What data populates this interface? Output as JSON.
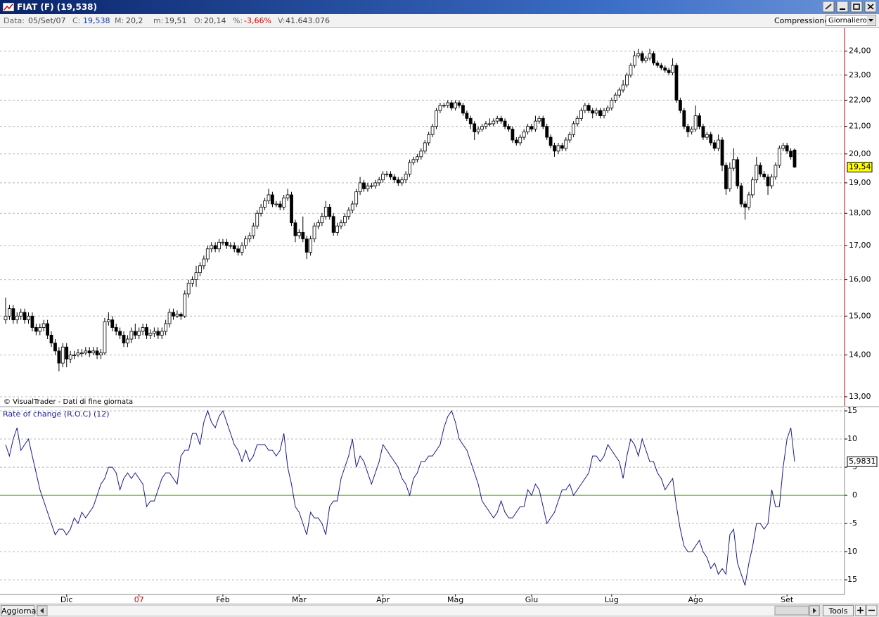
{
  "window": {
    "title": "FIAT (F) (19,538)"
  },
  "info_bar": {
    "items": [
      {
        "label": "Data:",
        "value": "05/Set/07"
      },
      {
        "label": "C:",
        "value": "19,538"
      },
      {
        "label": "M:",
        "value": "20,2"
      },
      {
        "label": "m:",
        "value": "19,51"
      },
      {
        "label": "O:",
        "value": "20,14"
      },
      {
        "label": "%:",
        "value": "-3,66%"
      },
      {
        "label": "V:",
        "value": "41.643.076"
      }
    ],
    "compression_label": "Compressione",
    "compression_value": "Giornaliero"
  },
  "chart_data": [
    {
      "type": "candlestick",
      "annotation": "© VisualTrader - Dati di fine giornata",
      "open": [
        14.9,
        15.0,
        15.2,
        14.9,
        15.0,
        15.1,
        14.9,
        15.0,
        14.7,
        14.6,
        14.7,
        14.8,
        14.5,
        14.3,
        14.1,
        13.8,
        14.2,
        13.9,
        14.0,
        14.0,
        14.05,
        14.05,
        14.1,
        14.05,
        14.1,
        14.0,
        14.05,
        14.85,
        14.9,
        14.7,
        14.6,
        14.5,
        14.3,
        14.4,
        14.6,
        14.5,
        14.6,
        14.7,
        14.5,
        14.55,
        14.6,
        14.5,
        14.6,
        14.8,
        15.1,
        15.0,
        15.05,
        15.0,
        15.6,
        15.9,
        16.0,
        16.2,
        16.4,
        16.6,
        16.9,
        17.0,
        16.9,
        17.1,
        17.1,
        17.0,
        17.0,
        16.9,
        16.8,
        17.0,
        17.2,
        17.3,
        17.6,
        18.0,
        18.2,
        18.4,
        18.6,
        18.3,
        18.3,
        18.2,
        18.5,
        18.6,
        17.7,
        17.3,
        17.4,
        17.2,
        16.8,
        17.2,
        17.6,
        17.7,
        17.9,
        18.2,
        17.9,
        17.4,
        17.6,
        17.7,
        17.9,
        18.1,
        18.3,
        18.7,
        19.0,
        18.8,
        18.9,
        18.9,
        19.0,
        19.1,
        19.3,
        19.3,
        19.2,
        19.1,
        19.0,
        19.1,
        19.3,
        19.7,
        19.8,
        19.9,
        20.1,
        20.4,
        20.7,
        21.0,
        21.6,
        21.8,
        21.8,
        21.9,
        21.7,
        21.9,
        21.8,
        21.5,
        21.3,
        21.1,
        20.8,
        20.9,
        21.0,
        21.1,
        21.1,
        21.2,
        21.3,
        21.2,
        21.0,
        20.9,
        20.5,
        20.4,
        20.6,
        20.8,
        21.0,
        20.9,
        21.2,
        21.3,
        21.0,
        20.6,
        20.3,
        20.1,
        20.3,
        20.2,
        20.5,
        20.7,
        21.1,
        21.3,
        21.6,
        21.8,
        21.6,
        21.5,
        21.6,
        21.4,
        21.6,
        21.7,
        22.0,
        22.2,
        22.4,
        22.6,
        23.0,
        23.4,
        23.8,
        23.9,
        23.6,
        23.7,
        23.9,
        23.5,
        23.4,
        23.3,
        23.2,
        23.1,
        23.4,
        22.0,
        21.6,
        21.0,
        20.8,
        20.9,
        21.4,
        21.0,
        20.6,
        20.7,
        20.4,
        20.2,
        20.5,
        19.6,
        18.8,
        19.5,
        19.8,
        18.9,
        18.3,
        18.2,
        18.6,
        19.1,
        19.6,
        19.3,
        19.2,
        18.9,
        19.2,
        19.6,
        20.2,
        20.3,
        20.1,
        20.14
      ],
      "high": [
        15.5,
        15.3,
        15.3,
        15.1,
        15.2,
        15.2,
        15.1,
        15.1,
        14.8,
        14.8,
        14.9,
        14.9,
        14.6,
        14.4,
        14.2,
        14.3,
        14.3,
        14.1,
        14.1,
        14.15,
        14.15,
        14.2,
        14.2,
        14.2,
        14.2,
        14.15,
        14.95,
        15.1,
        15.0,
        14.8,
        14.7,
        14.6,
        14.5,
        14.7,
        14.8,
        14.7,
        14.8,
        14.8,
        14.65,
        14.7,
        14.7,
        14.7,
        14.9,
        15.2,
        15.2,
        15.15,
        15.1,
        15.7,
        16.0,
        16.1,
        16.4,
        16.5,
        16.7,
        17.0,
        17.1,
        17.1,
        17.2,
        17.2,
        17.2,
        17.1,
        17.1,
        17.0,
        17.1,
        17.3,
        17.4,
        17.7,
        18.1,
        18.3,
        18.5,
        18.8,
        18.7,
        18.4,
        18.4,
        18.6,
        18.8,
        18.7,
        17.8,
        17.5,
        17.9,
        17.3,
        17.3,
        17.7,
        17.8,
        18.0,
        18.4,
        18.3,
        18.0,
        17.7,
        17.8,
        18.0,
        18.2,
        18.4,
        18.8,
        19.2,
        19.1,
        19.0,
        19.0,
        19.1,
        19.2,
        19.4,
        19.4,
        19.4,
        19.3,
        19.2,
        19.2,
        19.4,
        19.8,
        19.9,
        20.0,
        20.2,
        20.5,
        20.8,
        21.1,
        21.7,
        21.9,
        21.9,
        22.0,
        22.0,
        22.0,
        22.0,
        21.9,
        21.6,
        21.4,
        21.2,
        21.0,
        21.1,
        21.2,
        21.3,
        21.3,
        21.4,
        21.4,
        21.3,
        21.1,
        21.0,
        20.6,
        20.7,
        20.9,
        21.1,
        21.1,
        21.4,
        21.4,
        21.4,
        21.1,
        20.7,
        20.4,
        20.4,
        20.4,
        20.6,
        20.8,
        21.2,
        21.4,
        21.7,
        21.9,
        21.9,
        21.7,
        21.7,
        21.7,
        21.7,
        21.8,
        22.1,
        22.3,
        22.5,
        22.8,
        23.1,
        23.5,
        24.0,
        24.1,
        24.0,
        23.8,
        24.1,
        24.0,
        23.6,
        23.5,
        23.4,
        23.3,
        23.7,
        23.5,
        22.1,
        21.7,
        21.1,
        21.0,
        21.8,
        21.5,
        21.1,
        20.8,
        20.8,
        20.5,
        20.7,
        20.6,
        19.7,
        19.7,
        20.2,
        19.9,
        19.0,
        18.4,
        18.7,
        19.2,
        19.9,
        19.7,
        19.4,
        19.3,
        19.3,
        19.7,
        20.3,
        20.4,
        20.4,
        20.2,
        20.2
      ],
      "low": [
        14.8,
        14.9,
        14.8,
        14.8,
        14.9,
        14.8,
        14.8,
        14.6,
        14.5,
        14.5,
        14.6,
        14.4,
        14.2,
        14.0,
        13.6,
        13.7,
        13.7,
        13.8,
        13.9,
        13.95,
        13.95,
        14.0,
        13.95,
        14.0,
        13.9,
        13.9,
        14.0,
        14.75,
        14.6,
        14.5,
        14.4,
        14.2,
        14.2,
        14.3,
        14.4,
        14.4,
        14.5,
        14.4,
        14.4,
        14.45,
        14.4,
        14.4,
        14.5,
        14.7,
        14.9,
        14.95,
        14.9,
        14.95,
        15.5,
        15.8,
        15.8,
        16.1,
        16.3,
        16.5,
        16.8,
        16.8,
        16.8,
        17.0,
        16.9,
        16.9,
        16.8,
        16.7,
        16.7,
        16.9,
        17.1,
        17.2,
        17.5,
        17.9,
        18.1,
        18.3,
        18.2,
        18.2,
        18.1,
        18.1,
        18.4,
        17.6,
        17.1,
        17.2,
        17.1,
        16.6,
        16.7,
        17.1,
        17.5,
        17.6,
        17.8,
        17.8,
        17.3,
        17.3,
        17.5,
        17.6,
        17.8,
        18.0,
        18.2,
        18.6,
        18.7,
        18.7,
        18.8,
        18.8,
        18.9,
        19.0,
        19.2,
        19.1,
        19.0,
        18.9,
        18.9,
        19.0,
        19.2,
        19.6,
        19.7,
        19.8,
        20.0,
        20.3,
        20.6,
        20.9,
        21.5,
        21.7,
        21.7,
        21.6,
        21.6,
        21.7,
        21.4,
        21.2,
        20.9,
        20.5,
        20.7,
        20.8,
        20.9,
        21.0,
        21.0,
        21.1,
        21.1,
        20.9,
        20.8,
        20.4,
        20.3,
        20.3,
        20.5,
        20.7,
        20.8,
        20.8,
        21.1,
        20.9,
        20.5,
        20.2,
        19.9,
        20.0,
        20.1,
        20.1,
        20.4,
        20.6,
        21.0,
        21.2,
        21.5,
        21.5,
        21.3,
        21.4,
        21.3,
        21.3,
        21.5,
        21.6,
        21.9,
        22.1,
        22.3,
        22.5,
        22.9,
        23.3,
        23.7,
        23.5,
        23.5,
        23.6,
        23.4,
        23.3,
        23.2,
        23.1,
        23.0,
        23.0,
        21.9,
        21.5,
        20.9,
        20.6,
        20.7,
        20.8,
        20.9,
        20.5,
        20.5,
        20.3,
        20.1,
        20.1,
        19.4,
        18.6,
        18.7,
        19.4,
        18.8,
        18.2,
        17.8,
        18.1,
        18.5,
        19.0,
        19.2,
        19.1,
        18.6,
        18.8,
        19.1,
        19.5,
        20.1,
        20.0,
        19.8,
        19.51
      ],
      "close": [
        15.0,
        15.2,
        14.9,
        15.0,
        15.1,
        14.9,
        15.0,
        14.7,
        14.6,
        14.7,
        14.8,
        14.5,
        14.3,
        14.1,
        13.8,
        14.2,
        13.9,
        14.0,
        14.0,
        14.05,
        14.05,
        14.1,
        14.05,
        14.1,
        14.0,
        14.05,
        14.85,
        14.9,
        14.7,
        14.6,
        14.5,
        14.3,
        14.4,
        14.6,
        14.5,
        14.6,
        14.7,
        14.5,
        14.55,
        14.6,
        14.5,
        14.6,
        14.8,
        15.1,
        15.0,
        15.05,
        15.0,
        15.6,
        15.9,
        16.0,
        16.2,
        16.4,
        16.6,
        16.9,
        17.0,
        16.9,
        17.1,
        17.1,
        17.0,
        17.0,
        16.9,
        16.8,
        17.0,
        17.2,
        17.3,
        17.6,
        18.0,
        18.2,
        18.4,
        18.6,
        18.3,
        18.3,
        18.2,
        18.5,
        18.6,
        17.7,
        17.3,
        17.4,
        17.2,
        16.8,
        17.2,
        17.6,
        17.7,
        17.9,
        18.2,
        17.9,
        17.4,
        17.6,
        17.7,
        17.9,
        18.1,
        18.3,
        18.7,
        19.0,
        18.8,
        18.9,
        18.9,
        19.0,
        19.1,
        19.3,
        19.3,
        19.2,
        19.1,
        19.0,
        19.1,
        19.3,
        19.7,
        19.8,
        19.9,
        20.1,
        20.4,
        20.7,
        21.0,
        21.6,
        21.8,
        21.8,
        21.9,
        21.7,
        21.9,
        21.8,
        21.5,
        21.3,
        21.1,
        20.8,
        20.9,
        21.0,
        21.1,
        21.1,
        21.2,
        21.3,
        21.2,
        21.0,
        20.9,
        20.5,
        20.4,
        20.6,
        20.8,
        21.0,
        20.9,
        21.2,
        21.3,
        21.0,
        20.6,
        20.3,
        20.1,
        20.3,
        20.2,
        20.5,
        20.7,
        21.1,
        21.3,
        21.6,
        21.8,
        21.6,
        21.5,
        21.6,
        21.4,
        21.6,
        21.7,
        22.0,
        22.2,
        22.4,
        22.6,
        23.0,
        23.4,
        23.8,
        23.9,
        23.6,
        23.7,
        23.9,
        23.5,
        23.4,
        23.3,
        23.2,
        23.1,
        23.4,
        22.0,
        21.6,
        21.0,
        20.8,
        20.9,
        21.4,
        21.0,
        20.6,
        20.7,
        20.4,
        20.2,
        20.5,
        19.6,
        18.8,
        19.5,
        19.8,
        18.9,
        18.3,
        18.2,
        18.6,
        19.1,
        19.6,
        19.3,
        19.2,
        18.9,
        19.2,
        19.6,
        20.2,
        20.3,
        20.1,
        19.9,
        19.538
      ],
      "last_value_label": "19,54",
      "up_color": "#ffffff",
      "down_color": "#000000",
      "axis_color": "#cc0000",
      "log_scale": true,
      "grid": true,
      "ylim": [
        12.79,
        25.0
      ],
      "yticks": [
        {
          "value": 13,
          "label": "13,00"
        },
        {
          "value": 14,
          "label": "14,00"
        },
        {
          "value": 15,
          "label": "15,00"
        },
        {
          "value": 16,
          "label": "16,00"
        },
        {
          "value": 17,
          "label": "17,00"
        },
        {
          "value": 18,
          "label": "18,00"
        },
        {
          "value": 19,
          "label": "19,00"
        },
        {
          "value": 20,
          "label": "20,00"
        },
        {
          "value": 21,
          "label": "21,00"
        },
        {
          "value": 22,
          "label": "22,00"
        },
        {
          "value": 23,
          "label": "23,00"
        },
        {
          "value": 24,
          "label": "24,00"
        }
      ]
    },
    {
      "type": "line",
      "title": "Rate of change (R.O.C) (12)",
      "categories": [
        null,
        null,
        null,
        null,
        null,
        null,
        null,
        null,
        null,
        null,
        null,
        null,
        null,
        null,
        null,
        null,
        "Dic",
        null,
        null,
        null,
        null,
        null,
        null,
        null,
        null,
        null,
        null,
        null,
        null,
        null,
        null,
        null,
        null,
        null,
        null,
        "07",
        null,
        null,
        null,
        null,
        null,
        null,
        null,
        null,
        null,
        null,
        null,
        null,
        null,
        null,
        null,
        null,
        null,
        null,
        null,
        null,
        null,
        "Feb",
        null,
        null,
        null,
        null,
        null,
        null,
        null,
        null,
        null,
        null,
        null,
        null,
        null,
        null,
        null,
        null,
        null,
        null,
        null,
        "Mar",
        null,
        null,
        null,
        null,
        null,
        null,
        null,
        null,
        null,
        null,
        null,
        null,
        null,
        null,
        null,
        null,
        null,
        null,
        null,
        null,
        null,
        "Apr",
        null,
        null,
        null,
        null,
        null,
        null,
        null,
        null,
        null,
        null,
        null,
        null,
        null,
        null,
        null,
        null,
        null,
        null,
        "Mag",
        null,
        null,
        null,
        null,
        null,
        null,
        null,
        null,
        null,
        null,
        null,
        null,
        null,
        null,
        null,
        null,
        null,
        null,
        null,
        "Giu",
        null,
        null,
        null,
        null,
        null,
        null,
        null,
        null,
        null,
        null,
        null,
        null,
        null,
        null,
        null,
        null,
        null,
        null,
        null,
        null,
        "Lug",
        null,
        null,
        null,
        null,
        null,
        null,
        null,
        null,
        null,
        null,
        null,
        null,
        null,
        null,
        null,
        null,
        null,
        null,
        null,
        null,
        null,
        "Ago",
        null,
        null,
        null,
        null,
        null,
        null,
        null,
        null,
        null,
        null,
        null,
        null,
        null,
        null,
        null,
        null,
        null,
        null,
        null,
        null,
        null,
        null,
        null,
        "Set",
        null,
        null
      ],
      "values": [
        9,
        7,
        10,
        12,
        8,
        9,
        10,
        7,
        4,
        1,
        -1,
        -3,
        -5,
        -7,
        -6,
        -6,
        -7,
        -6,
        -4,
        -5,
        -3,
        -4,
        -3,
        -2,
        0,
        2,
        3,
        5,
        5,
        4,
        1,
        3,
        4,
        3,
        4,
        3,
        2,
        -2,
        -1,
        -1,
        1,
        3,
        4,
        4,
        3,
        2,
        7,
        8,
        8,
        11,
        11,
        9,
        13,
        15,
        13,
        12,
        14,
        15,
        13,
        11,
        9,
        8,
        6,
        8,
        6,
        7,
        9,
        9,
        9,
        8,
        8,
        7,
        8,
        11,
        5,
        2,
        -2,
        -3,
        -5,
        -7,
        -3,
        -4,
        -4,
        -5,
        -7,
        -2,
        -1,
        -1,
        3,
        5,
        7,
        10,
        5,
        7,
        6,
        4,
        2,
        4,
        6,
        9,
        8,
        7,
        6,
        5,
        3,
        2,
        0,
        3,
        4,
        6,
        6,
        7,
        7,
        8,
        9,
        12,
        14,
        15,
        13,
        10,
        9,
        8,
        6,
        4,
        2,
        -1,
        -2,
        -3,
        -4,
        -3,
        -1,
        -3,
        -4,
        -4,
        -3,
        -2,
        -2,
        1,
        0,
        2,
        1,
        -2,
        -5,
        -4,
        -3,
        -1,
        1,
        1,
        2,
        0,
        1,
        2,
        3,
        4,
        7,
        7,
        6,
        7,
        9,
        8,
        7,
        6,
        3,
        7,
        10,
        9,
        7,
        10,
        8,
        6,
        6,
        4,
        3,
        1,
        2,
        3,
        -2,
        -6,
        -9,
        -10,
        -10,
        -9,
        -8,
        -10,
        -11,
        -13,
        -12,
        -14,
        -13,
        -14,
        -7,
        -6,
        -12,
        -14,
        -16,
        -12,
        -9,
        -5,
        -5,
        -6,
        -5,
        1,
        -2,
        -2,
        5,
        10,
        12,
        5.9831
      ],
      "last_value_label": "5,9831",
      "color": "#1a1a8c",
      "zero_line_color": "#77bb44",
      "grid": true,
      "ylim": [
        -17.6,
        15.5
      ],
      "yticks": [
        15,
        10,
        5,
        0,
        -5,
        -10,
        -15
      ]
    }
  ],
  "toolbar": {
    "refresh": "Aggiorna",
    "tools": "Tools"
  }
}
